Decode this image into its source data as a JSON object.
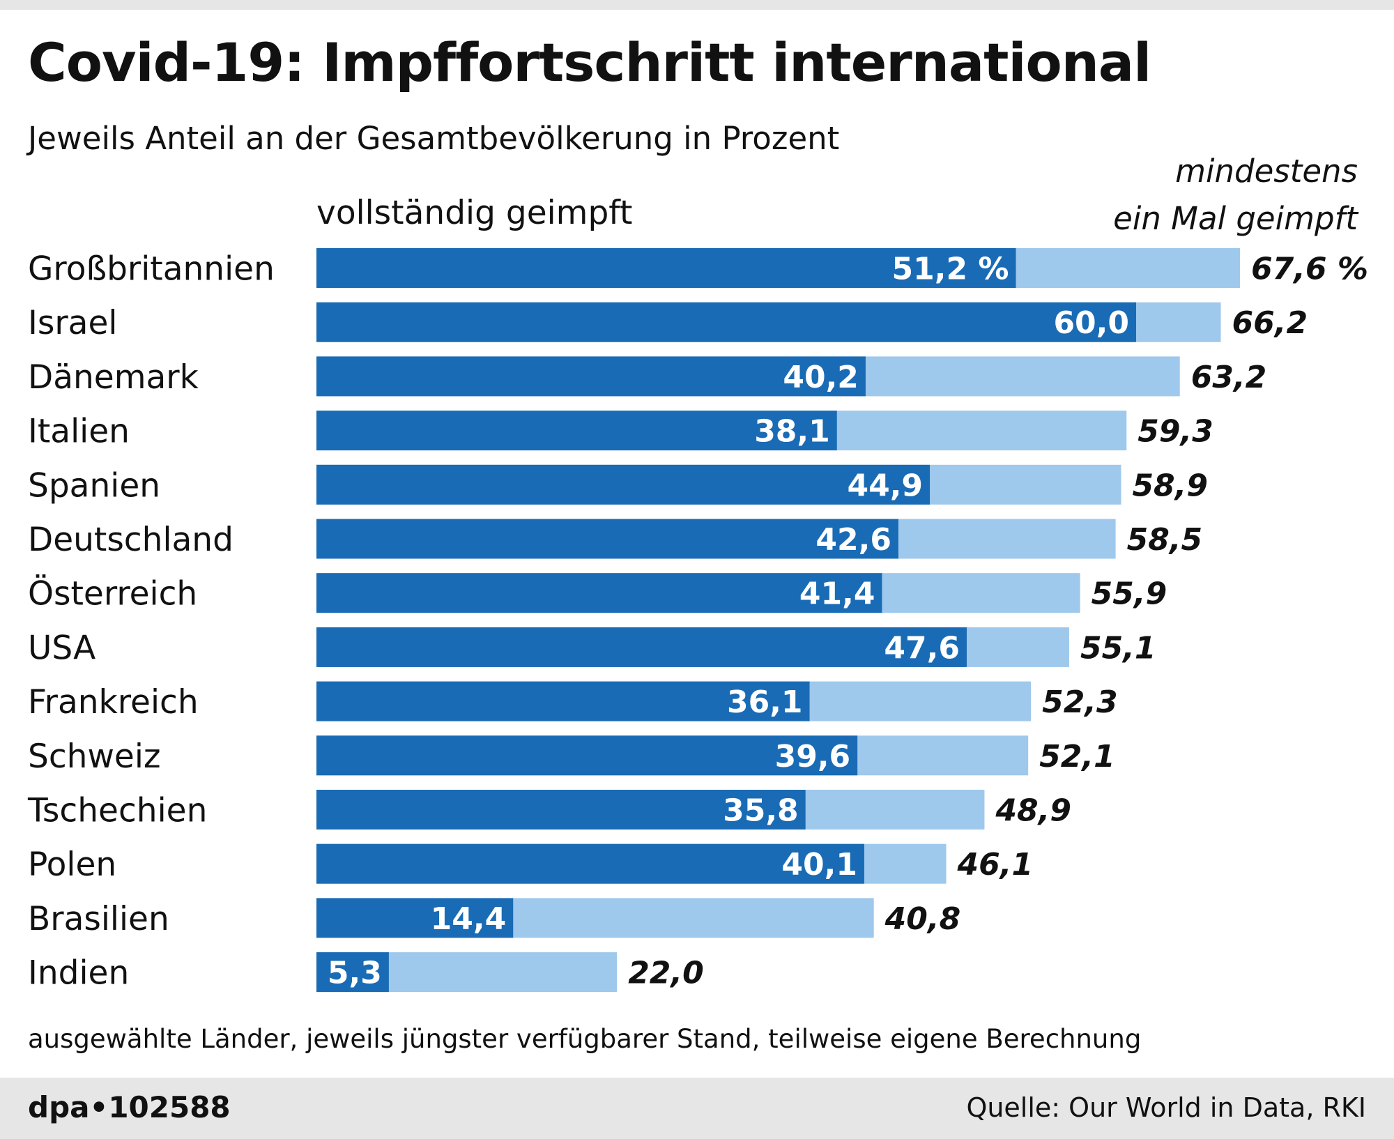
{
  "header": {
    "title": "Covid-19: Impffortschritt international",
    "subtitle": "Jeweils Anteil an der Gesamtbevölkerung in Prozent"
  },
  "legend": {
    "fully": "vollständig geimpft",
    "once_line1": "mindestens",
    "once_line2": "ein Mal geimpft"
  },
  "colors": {
    "fully": "#1a6bb5",
    "once": "#9ec8ec",
    "footer": "#e6e6e6"
  },
  "chart_data": {
    "type": "bar",
    "orientation": "horizontal",
    "categories": [
      "Großbritannien",
      "Israel",
      "Dänemark",
      "Italien",
      "Spanien",
      "Deutschland",
      "Österreich",
      "USA",
      "Frankreich",
      "Schweiz",
      "Tschechien",
      "Polen",
      "Brasilien",
      "Indien"
    ],
    "series": [
      {
        "name": "vollständig geimpft",
        "values": [
          51.2,
          60.0,
          40.2,
          38.1,
          44.9,
          42.6,
          41.4,
          47.6,
          36.1,
          39.6,
          35.8,
          40.1,
          14.4,
          5.3
        ],
        "labels": [
          "51,2 %",
          "60,0",
          "40,2",
          "38,1",
          "44,9",
          "42,6",
          "41,4",
          "47,6",
          "36,1",
          "39,6",
          "35,8",
          "40,1",
          "14,4",
          "5,3"
        ]
      },
      {
        "name": "mindestens ein Mal geimpft",
        "values": [
          67.6,
          66.2,
          63.2,
          59.3,
          58.9,
          58.5,
          55.9,
          55.1,
          52.3,
          52.1,
          48.9,
          46.1,
          40.8,
          22.0
        ],
        "labels": [
          "67,6 %",
          "66,2",
          "63,2",
          "59,3",
          "58,9",
          "58,5",
          "55,9",
          "55,1",
          "52,3",
          "52,1",
          "48,9",
          "46,1",
          "40,8",
          "22,0"
        ]
      }
    ],
    "xlim": [
      0,
      67.6
    ],
    "grid": false,
    "legend": "top"
  },
  "footnote": "ausgewählte Länder, jeweils jüngster verfügbarer Stand, teilweise eigene Berechnung",
  "footer": {
    "brand": "dpa•102588",
    "source": "Quelle: Our World in Data, RKI"
  }
}
